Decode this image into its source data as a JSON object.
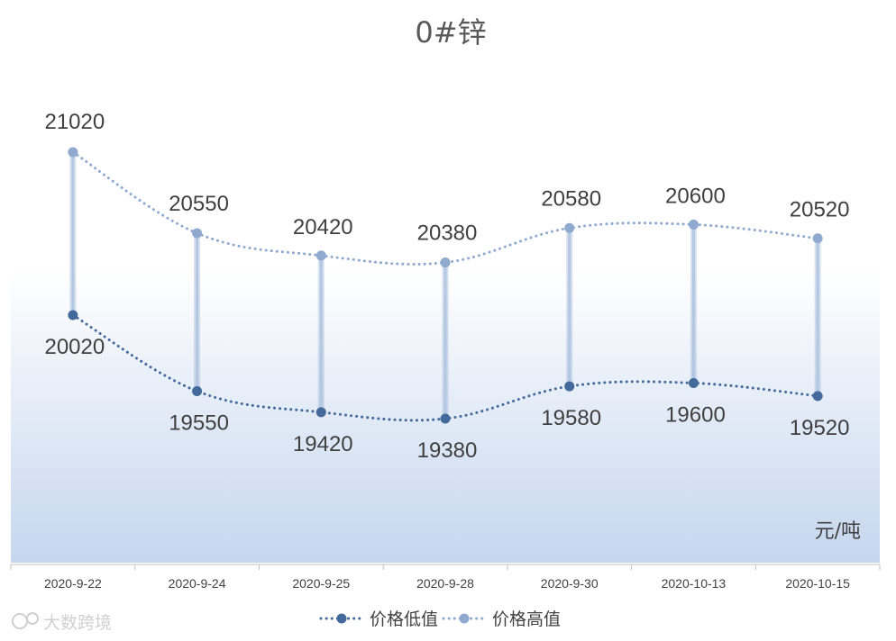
{
  "chart_data": {
    "type": "line",
    "title": "0#锌",
    "unit_label": "元/吨",
    "categories": [
      "2020-9-22",
      "2020-9-24",
      "2020-9-25",
      "2020-9-28",
      "2020-9-30",
      "2020-10-13",
      "2020-10-15"
    ],
    "series": [
      {
        "name": "价格低值",
        "values": [
          20020,
          19550,
          19420,
          19380,
          19580,
          19600,
          19520
        ],
        "color": "#44699B"
      },
      {
        "name": "价格高值",
        "values": [
          21020,
          20550,
          20420,
          20380,
          20580,
          20600,
          20520
        ],
        "color": "#8FA9CF"
      }
    ],
    "high_low_lines": true,
    "data_labels": true,
    "legend_position": "bottom",
    "grid": false,
    "background_gradient": [
      "#ffffff",
      "#C5D6EE"
    ]
  },
  "watermark": "大数跨境"
}
